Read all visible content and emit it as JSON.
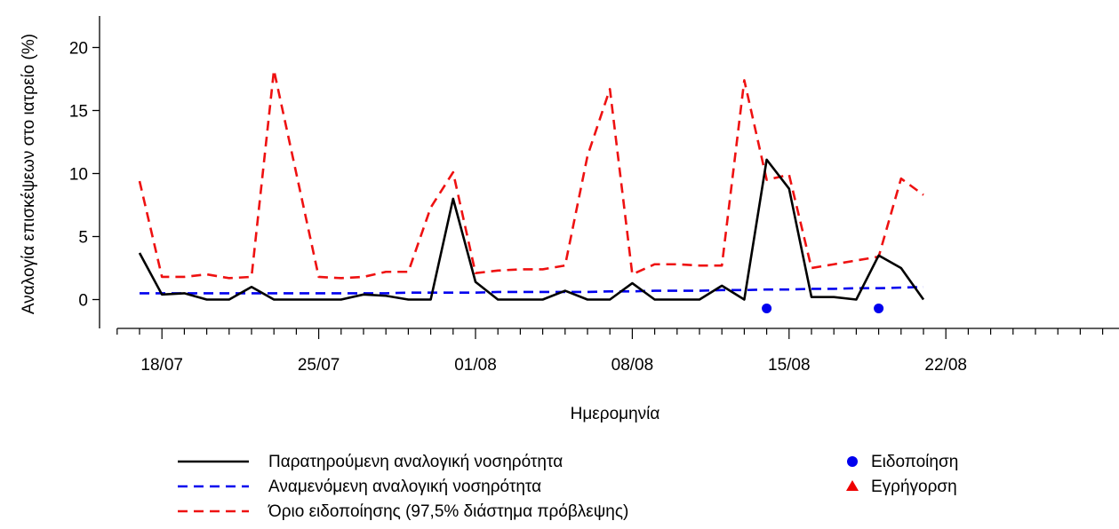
{
  "chart_data": {
    "type": "line",
    "title": "",
    "xlabel": "Ημερομηνία",
    "ylabel": "Αναλογία επισκέψεων στο ιατρείο (%)",
    "ylim": [
      -2.5,
      22.5
    ],
    "yticks": [
      0,
      5,
      10,
      15,
      20
    ],
    "ytick_labels": [
      "0",
      "5",
      "10",
      "15",
      "20"
    ],
    "x_dates": [
      "17/07",
      "18/07",
      "19/07",
      "20/07",
      "21/07",
      "22/07",
      "23/07",
      "24/07",
      "25/07",
      "26/07",
      "27/07",
      "28/07",
      "29/07",
      "30/07",
      "31/07",
      "01/08",
      "02/08",
      "03/08",
      "04/08",
      "05/08",
      "06/08",
      "07/08",
      "08/08",
      "09/08",
      "10/08",
      "11/08",
      "12/08",
      "13/08",
      "14/08",
      "15/08",
      "16/08",
      "17/08",
      "18/08",
      "19/08",
      "20/08",
      "21/08"
    ],
    "xlim": [
      "16/07",
      "31/08"
    ],
    "xticks": [
      "18/07",
      "25/07",
      "01/08",
      "08/08",
      "15/08",
      "22/08"
    ],
    "xtick_labels": [
      "18/07",
      "25/07",
      "01/08",
      "08/08",
      "15/08",
      "22/08"
    ],
    "series": [
      {
        "name": "Παρατηρούμενη αναλογική νοσηρότητα",
        "style": "solid",
        "color": "#000000",
        "values": [
          3.7,
          0.4,
          0.5,
          0,
          0,
          1.0,
          0,
          0,
          0,
          0,
          0.4,
          0.3,
          0,
          0,
          8.0,
          1.4,
          0,
          0,
          0,
          0.7,
          0,
          0,
          1.3,
          0,
          0,
          0,
          1.1,
          0,
          11.1,
          8.8,
          0.2,
          0.2,
          0,
          3.5,
          2.5,
          0
        ]
      },
      {
        "name": "Αναμενόμενη αναλογική νοσηρότητα",
        "style": "dashed",
        "color": "#0000ee",
        "values": [
          0.5,
          0.5,
          0.5,
          0.5,
          0.5,
          0.5,
          0.5,
          0.5,
          0.5,
          0.5,
          0.5,
          0.5,
          0.55,
          0.55,
          0.55,
          0.55,
          0.6,
          0.6,
          0.6,
          0.6,
          0.6,
          0.65,
          0.65,
          0.7,
          0.7,
          0.7,
          0.75,
          0.75,
          0.8,
          0.8,
          0.85,
          0.85,
          0.9,
          0.9,
          0.95,
          1.0
        ]
      },
      {
        "name": "Όριο ειδοποίησης (97,5% διάστημα πρόβλεψης)",
        "style": "dashed",
        "color": "#ee1111",
        "values": [
          9.4,
          1.8,
          1.8,
          2.0,
          1.7,
          1.8,
          18.2,
          10.0,
          1.8,
          1.7,
          1.8,
          2.2,
          2.2,
          7.3,
          10.1,
          2.1,
          2.3,
          2.4,
          2.4,
          2.7,
          11.4,
          16.7,
          2.0,
          2.8,
          2.8,
          2.7,
          2.7,
          17.4,
          9.5,
          9.9,
          2.5,
          2.8,
          3.1,
          3.4,
          9.6,
          8.3
        ]
      }
    ],
    "signals": [
      {
        "name": "Ειδοποίηση",
        "marker": "circle",
        "color": "#0000ee",
        "x": [
          "14/08",
          "19/08"
        ],
        "y": -0.7
      }
    ],
    "legend_right": [
      {
        "name": "Ειδοποίηση",
        "marker": "circle",
        "color": "#0000ee"
      },
      {
        "name": "Εγρήγορση",
        "marker": "triangle",
        "color": "#ee0000"
      }
    ],
    "legend_placement": "bottom",
    "grid": false
  }
}
